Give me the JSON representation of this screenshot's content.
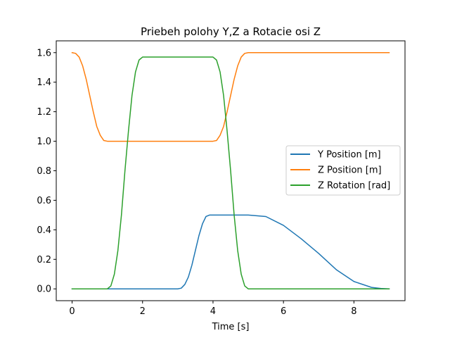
{
  "chart_data": {
    "type": "line",
    "title": "Priebeh polohy Y,Z a Rotacie osi Z",
    "xlabel": "Time [s]",
    "ylabel": "",
    "xlim": [
      -0.45,
      9.45
    ],
    "ylim": [
      -0.08,
      1.68
    ],
    "xticks": [
      0,
      2,
      4,
      6,
      8
    ],
    "yticks": [
      0.0,
      0.2,
      0.4,
      0.6,
      0.8,
      1.0,
      1.2,
      1.4,
      1.6
    ],
    "xtick_labels": [
      "0",
      "2",
      "4",
      "6",
      "8"
    ],
    "ytick_labels": [
      "0.0",
      "0.2",
      "0.4",
      "0.6",
      "0.8",
      "1.0",
      "1.2",
      "1.4",
      "1.6"
    ],
    "grid": false,
    "legend_position": "center-right",
    "series": [
      {
        "name": "Y Position [m]",
        "color": "#1f77b4",
        "x": [
          0,
          1,
          2,
          3.0,
          3.1,
          3.2,
          3.3,
          3.4,
          3.5,
          3.6,
          3.7,
          3.8,
          3.9,
          4.0,
          5.0,
          5.5,
          6.0,
          6.5,
          7.0,
          7.5,
          8.0,
          8.5,
          8.8,
          9.0
        ],
        "y": [
          0,
          0,
          0,
          0.0,
          0.005,
          0.03,
          0.08,
          0.16,
          0.26,
          0.36,
          0.44,
          0.49,
          0.5,
          0.5,
          0.5,
          0.49,
          0.43,
          0.34,
          0.24,
          0.13,
          0.05,
          0.01,
          0.002,
          0.0
        ]
      },
      {
        "name": "Z Position [m]",
        "color": "#ff7f0e",
        "x": [
          0,
          0.1,
          0.2,
          0.3,
          0.4,
          0.5,
          0.6,
          0.7,
          0.8,
          0.9,
          1.0,
          2.0,
          3.0,
          4.0,
          4.1,
          4.2,
          4.3,
          4.4,
          4.5,
          4.6,
          4.7,
          4.8,
          4.9,
          5.0,
          6.0,
          7.0,
          8.0,
          9.0
        ],
        "y": [
          1.6,
          1.595,
          1.57,
          1.51,
          1.42,
          1.31,
          1.2,
          1.1,
          1.04,
          1.005,
          1.0,
          1.0,
          1.0,
          1.0,
          1.005,
          1.04,
          1.1,
          1.2,
          1.31,
          1.42,
          1.51,
          1.57,
          1.595,
          1.6,
          1.6,
          1.6,
          1.6,
          1.6
        ]
      },
      {
        "name": "Z Rotation [rad]",
        "color": "#2ca02c",
        "x": [
          0,
          0.5,
          1.0,
          1.1,
          1.2,
          1.3,
          1.4,
          1.5,
          1.6,
          1.7,
          1.8,
          1.9,
          2.0,
          3.0,
          4.0,
          4.1,
          4.2,
          4.3,
          4.4,
          4.5,
          4.6,
          4.7,
          4.8,
          4.9,
          5.0,
          6.0,
          7.0,
          8.0,
          9.0
        ],
        "y": [
          0,
          0,
          0,
          0.02,
          0.1,
          0.26,
          0.5,
          0.8,
          1.07,
          1.31,
          1.47,
          1.55,
          1.57,
          1.57,
          1.57,
          1.55,
          1.47,
          1.31,
          1.07,
          0.8,
          0.5,
          0.26,
          0.1,
          0.02,
          0,
          0,
          0,
          0,
          0
        ]
      }
    ]
  }
}
